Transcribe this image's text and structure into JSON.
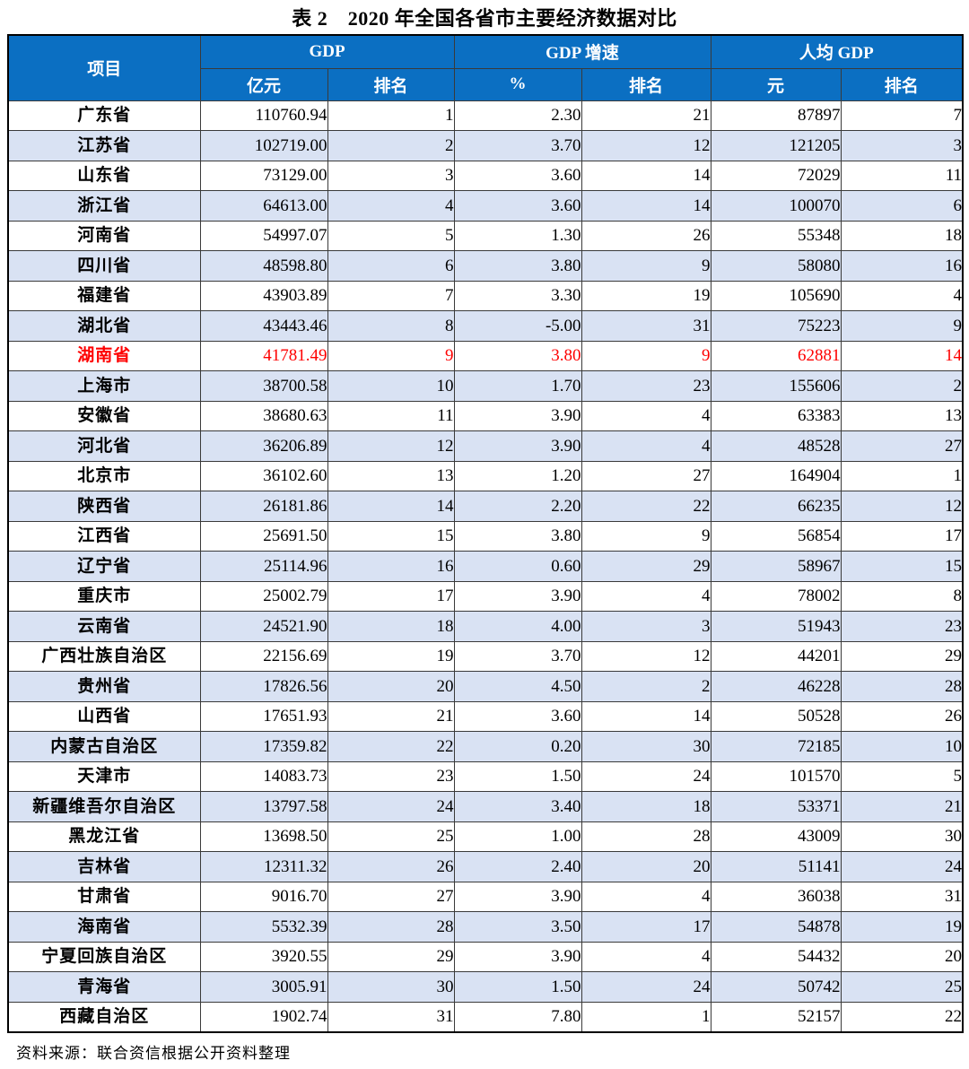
{
  "title": "表 2　2020 年全国各省市主要经济数据对比",
  "source_note": "资料来源：联合资信根据公开资料整理",
  "colors": {
    "header_bg": "#0b6fc2",
    "stripe_bg": "#d9e2f3",
    "highlight_text": "#fe0000"
  },
  "table": {
    "header": {
      "item_label": "项目",
      "groups": [
        {
          "label": "GDP",
          "sub": [
            "亿元",
            "排名"
          ]
        },
        {
          "label": "GDP 增速",
          "sub": [
            "%",
            "排名"
          ]
        },
        {
          "label": "人均 GDP",
          "sub": [
            "元",
            "排名"
          ]
        }
      ]
    },
    "rows": [
      {
        "name": "广东省",
        "gdp": "110760.94",
        "gdp_rank": "1",
        "growth": "2.30",
        "growth_rank": "21",
        "per_capita": "87897",
        "per_capita_rank": "7",
        "highlight": false
      },
      {
        "name": "江苏省",
        "gdp": "102719.00",
        "gdp_rank": "2",
        "growth": "3.70",
        "growth_rank": "12",
        "per_capita": "121205",
        "per_capita_rank": "3",
        "highlight": false
      },
      {
        "name": "山东省",
        "gdp": "73129.00",
        "gdp_rank": "3",
        "growth": "3.60",
        "growth_rank": "14",
        "per_capita": "72029",
        "per_capita_rank": "11",
        "highlight": false
      },
      {
        "name": "浙江省",
        "gdp": "64613.00",
        "gdp_rank": "4",
        "growth": "3.60",
        "growth_rank": "14",
        "per_capita": "100070",
        "per_capita_rank": "6",
        "highlight": false
      },
      {
        "name": "河南省",
        "gdp": "54997.07",
        "gdp_rank": "5",
        "growth": "1.30",
        "growth_rank": "26",
        "per_capita": "55348",
        "per_capita_rank": "18",
        "highlight": false
      },
      {
        "name": "四川省",
        "gdp": "48598.80",
        "gdp_rank": "6",
        "growth": "3.80",
        "growth_rank": "9",
        "per_capita": "58080",
        "per_capita_rank": "16",
        "highlight": false
      },
      {
        "name": "福建省",
        "gdp": "43903.89",
        "gdp_rank": "7",
        "growth": "3.30",
        "growth_rank": "19",
        "per_capita": "105690",
        "per_capita_rank": "4",
        "highlight": false
      },
      {
        "name": "湖北省",
        "gdp": "43443.46",
        "gdp_rank": "8",
        "growth": "-5.00",
        "growth_rank": "31",
        "per_capita": "75223",
        "per_capita_rank": "9",
        "highlight": false
      },
      {
        "name": "湖南省",
        "gdp": "41781.49",
        "gdp_rank": "9",
        "growth": "3.80",
        "growth_rank": "9",
        "per_capita": "62881",
        "per_capita_rank": "14",
        "highlight": true
      },
      {
        "name": "上海市",
        "gdp": "38700.58",
        "gdp_rank": "10",
        "growth": "1.70",
        "growth_rank": "23",
        "per_capita": "155606",
        "per_capita_rank": "2",
        "highlight": false
      },
      {
        "name": "安徽省",
        "gdp": "38680.63",
        "gdp_rank": "11",
        "growth": "3.90",
        "growth_rank": "4",
        "per_capita": "63383",
        "per_capita_rank": "13",
        "highlight": false
      },
      {
        "name": "河北省",
        "gdp": "36206.89",
        "gdp_rank": "12",
        "growth": "3.90",
        "growth_rank": "4",
        "per_capita": "48528",
        "per_capita_rank": "27",
        "highlight": false
      },
      {
        "name": "北京市",
        "gdp": "36102.60",
        "gdp_rank": "13",
        "growth": "1.20",
        "growth_rank": "27",
        "per_capita": "164904",
        "per_capita_rank": "1",
        "highlight": false
      },
      {
        "name": "陕西省",
        "gdp": "26181.86",
        "gdp_rank": "14",
        "growth": "2.20",
        "growth_rank": "22",
        "per_capita": "66235",
        "per_capita_rank": "12",
        "highlight": false
      },
      {
        "name": "江西省",
        "gdp": "25691.50",
        "gdp_rank": "15",
        "growth": "3.80",
        "growth_rank": "9",
        "per_capita": "56854",
        "per_capita_rank": "17",
        "highlight": false
      },
      {
        "name": "辽宁省",
        "gdp": "25114.96",
        "gdp_rank": "16",
        "growth": "0.60",
        "growth_rank": "29",
        "per_capita": "58967",
        "per_capita_rank": "15",
        "highlight": false
      },
      {
        "name": "重庆市",
        "gdp": "25002.79",
        "gdp_rank": "17",
        "growth": "3.90",
        "growth_rank": "4",
        "per_capita": "78002",
        "per_capita_rank": "8",
        "highlight": false
      },
      {
        "name": "云南省",
        "gdp": "24521.90",
        "gdp_rank": "18",
        "growth": "4.00",
        "growth_rank": "3",
        "per_capita": "51943",
        "per_capita_rank": "23",
        "highlight": false
      },
      {
        "name": "广西壮族自治区",
        "gdp": "22156.69",
        "gdp_rank": "19",
        "growth": "3.70",
        "growth_rank": "12",
        "per_capita": "44201",
        "per_capita_rank": "29",
        "highlight": false
      },
      {
        "name": "贵州省",
        "gdp": "17826.56",
        "gdp_rank": "20",
        "growth": "4.50",
        "growth_rank": "2",
        "per_capita": "46228",
        "per_capita_rank": "28",
        "highlight": false
      },
      {
        "name": "山西省",
        "gdp": "17651.93",
        "gdp_rank": "21",
        "growth": "3.60",
        "growth_rank": "14",
        "per_capita": "50528",
        "per_capita_rank": "26",
        "highlight": false
      },
      {
        "name": "内蒙古自治区",
        "gdp": "17359.82",
        "gdp_rank": "22",
        "growth": "0.20",
        "growth_rank": "30",
        "per_capita": "72185",
        "per_capita_rank": "10",
        "highlight": false
      },
      {
        "name": "天津市",
        "gdp": "14083.73",
        "gdp_rank": "23",
        "growth": "1.50",
        "growth_rank": "24",
        "per_capita": "101570",
        "per_capita_rank": "5",
        "highlight": false
      },
      {
        "name": "新疆维吾尔自治区",
        "gdp": "13797.58",
        "gdp_rank": "24",
        "growth": "3.40",
        "growth_rank": "18",
        "per_capita": "53371",
        "per_capita_rank": "21",
        "highlight": false
      },
      {
        "name": "黑龙江省",
        "gdp": "13698.50",
        "gdp_rank": "25",
        "growth": "1.00",
        "growth_rank": "28",
        "per_capita": "43009",
        "per_capita_rank": "30",
        "highlight": false
      },
      {
        "name": "吉林省",
        "gdp": "12311.32",
        "gdp_rank": "26",
        "growth": "2.40",
        "growth_rank": "20",
        "per_capita": "51141",
        "per_capita_rank": "24",
        "highlight": false
      },
      {
        "name": "甘肃省",
        "gdp": "9016.70",
        "gdp_rank": "27",
        "growth": "3.90",
        "growth_rank": "4",
        "per_capita": "36038",
        "per_capita_rank": "31",
        "highlight": false
      },
      {
        "name": "海南省",
        "gdp": "5532.39",
        "gdp_rank": "28",
        "growth": "3.50",
        "growth_rank": "17",
        "per_capita": "54878",
        "per_capita_rank": "19",
        "highlight": false
      },
      {
        "name": "宁夏回族自治区",
        "gdp": "3920.55",
        "gdp_rank": "29",
        "growth": "3.90",
        "growth_rank": "4",
        "per_capita": "54432",
        "per_capita_rank": "20",
        "highlight": false
      },
      {
        "name": "青海省",
        "gdp": "3005.91",
        "gdp_rank": "30",
        "growth": "1.50",
        "growth_rank": "24",
        "per_capita": "50742",
        "per_capita_rank": "25",
        "highlight": false
      },
      {
        "name": "西藏自治区",
        "gdp": "1902.74",
        "gdp_rank": "31",
        "growth": "7.80",
        "growth_rank": "1",
        "per_capita": "52157",
        "per_capita_rank": "22",
        "highlight": false
      }
    ]
  }
}
